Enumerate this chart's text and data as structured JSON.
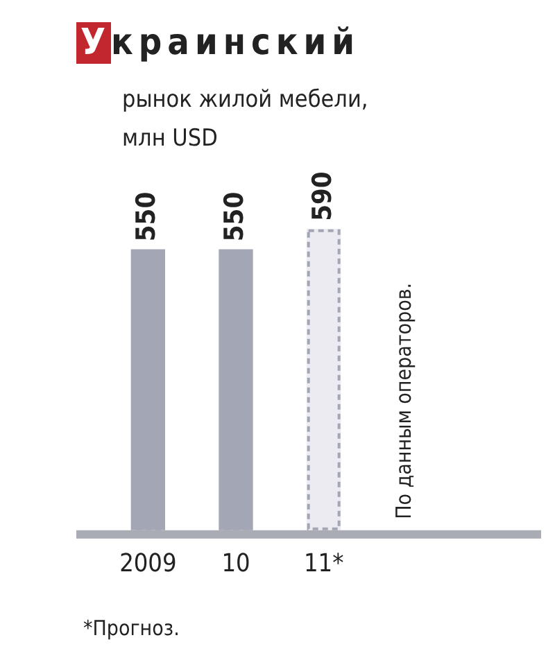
{
  "chart_data": {
    "type": "bar",
    "title": "Украинский",
    "subtitle": "рынок жилой мебели, млн USD",
    "categories": [
      "2009",
      "10",
      "11*"
    ],
    "values": [
      550,
      550,
      590
    ],
    "colors": [
      "#a3a6b4",
      "#a3a6b4",
      "#ebebf1"
    ],
    "data_labels": true,
    "grid": false,
    "legend": false,
    "annotations": [
      "По данным операторов.",
      "*Прогноз."
    ]
  }
}
